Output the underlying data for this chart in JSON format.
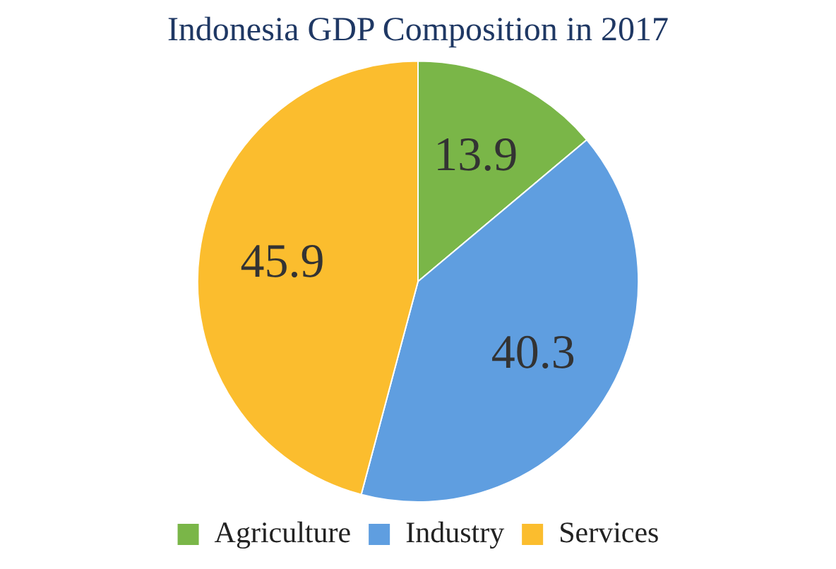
{
  "chart_data": {
    "type": "pie",
    "title": "Indonesia GDP Composition in 2017",
    "categories": [
      "Agriculture",
      "Industry",
      "Services"
    ],
    "values": [
      13.9,
      40.3,
      45.9
    ],
    "colors": [
      "#7ab648",
      "#5f9ee0",
      "#fbbd2e"
    ],
    "data_labels": true,
    "legend": "bottom"
  }
}
